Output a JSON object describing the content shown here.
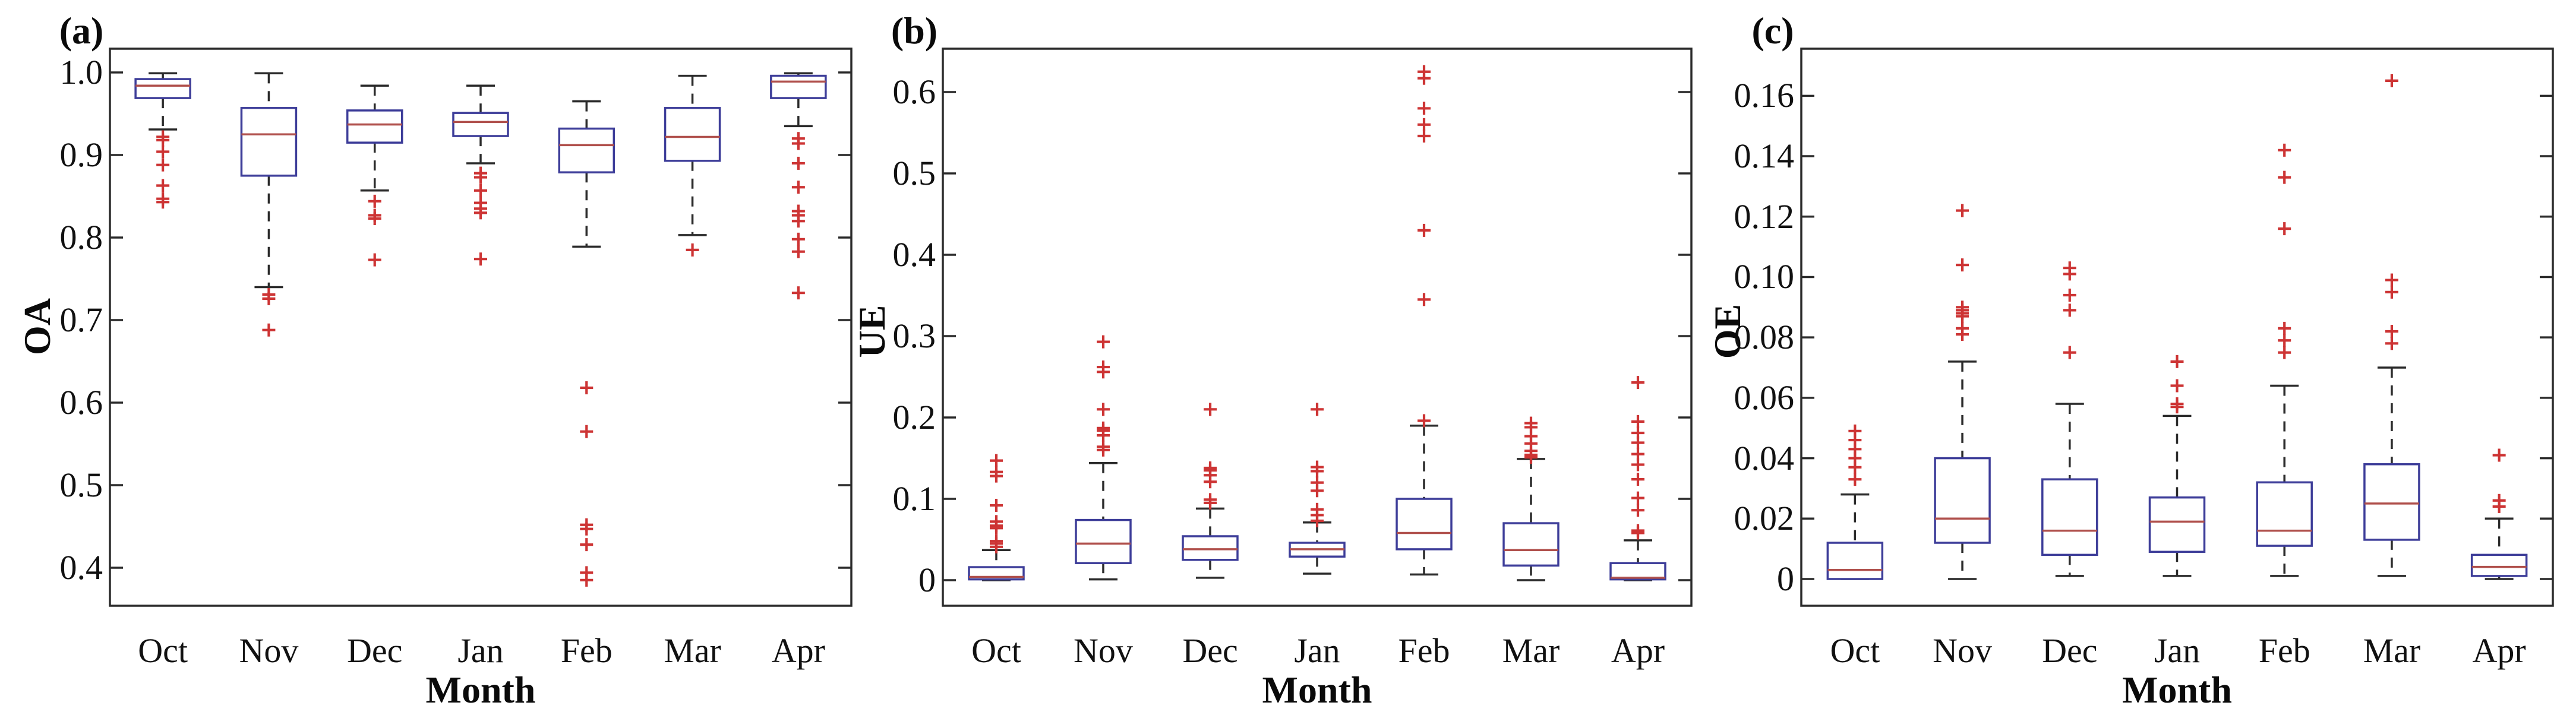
{
  "figure": {
    "background": "#ffffff",
    "box_color": "#3d3d99",
    "median_color": "#b0504c",
    "outlier_color": "#cd3434",
    "axis_color": "#2b2b2b",
    "text_color": "#111111"
  },
  "chart_data": [
    {
      "type": "box",
      "panel_label": "(a)",
      "ylabel": "OA",
      "xlabel": "Month",
      "categories": [
        "Oct",
        "Nov",
        "Dec",
        "Jan",
        "Feb",
        "Mar",
        "Apr"
      ],
      "ylim": [
        0.354,
        1.0288
      ],
      "ytick_values": [
        0.4,
        0.5,
        0.6,
        0.7,
        0.8,
        0.9,
        1.0
      ],
      "ytick_labels": [
        "0.4",
        "0.5",
        "0.6",
        "0.7",
        "0.8",
        "0.9",
        "1.0"
      ],
      "grid": false,
      "series": [
        {
          "label": "Oct",
          "whislo": 0.931,
          "q1": 0.969,
          "med": 0.984,
          "q3": 0.992,
          "whishi": 0.999,
          "fliers": [
            0.922,
            0.918,
            0.904,
            0.888,
            0.863,
            0.847,
            0.843
          ]
        },
        {
          "label": "Nov",
          "whislo": 0.74,
          "q1": 0.875,
          "med": 0.925,
          "q3": 0.957,
          "whishi": 0.999,
          "fliers": [
            0.731,
            0.726,
            0.688
          ]
        },
        {
          "label": "Dec",
          "whislo": 0.857,
          "q1": 0.915,
          "med": 0.937,
          "q3": 0.954,
          "whishi": 0.984,
          "fliers": [
            0.844,
            0.827,
            0.823,
            0.773
          ]
        },
        {
          "label": "Jan",
          "whislo": 0.89,
          "q1": 0.923,
          "med": 0.94,
          "q3": 0.951,
          "whishi": 0.984,
          "fliers": [
            0.878,
            0.873,
            0.857,
            0.842,
            0.835,
            0.83,
            0.774
          ]
        },
        {
          "label": "Feb",
          "whislo": 0.789,
          "q1": 0.879,
          "med": 0.912,
          "q3": 0.932,
          "whishi": 0.965,
          "fliers": [
            0.618,
            0.565,
            0.452,
            0.447,
            0.428,
            0.394,
            0.385
          ]
        },
        {
          "label": "Mar",
          "whislo": 0.803,
          "q1": 0.893,
          "med": 0.922,
          "q3": 0.957,
          "whishi": 0.996,
          "fliers": [
            0.785
          ]
        },
        {
          "label": "Apr",
          "whislo": 0.935,
          "q1": 0.969,
          "med": 0.989,
          "q3": 0.996,
          "whishi": 0.999,
          "fliers": [
            0.92,
            0.914,
            0.89,
            0.861,
            0.832,
            0.827,
            0.82,
            0.798,
            0.783,
            0.733
          ]
        }
      ]
    },
    {
      "type": "box",
      "panel_label": "(b)",
      "ylabel": "UE",
      "xlabel": "Month",
      "categories": [
        "Oct",
        "Nov",
        "Dec",
        "Jan",
        "Feb",
        "Mar",
        "Apr"
      ],
      "ylim": [
        -0.0314,
        0.6533
      ],
      "ytick_values": [
        0,
        0.1,
        0.2,
        0.3,
        0.4,
        0.5,
        0.6
      ],
      "ytick_labels": [
        "0",
        "0.1",
        "0.2",
        "0.3",
        "0.4",
        "0.5",
        "0.6"
      ],
      "grid": false,
      "series": [
        {
          "label": "Oct",
          "whislo": 0.0,
          "q1": 0.001,
          "med": 0.004,
          "q3": 0.016,
          "whishi": 0.037,
          "fliers": [
            0.041,
            0.045,
            0.048,
            0.064,
            0.067,
            0.072,
            0.092,
            0.128,
            0.133,
            0.147
          ]
        },
        {
          "label": "Nov",
          "whislo": 0.001,
          "q1": 0.021,
          "med": 0.045,
          "q3": 0.074,
          "whishi": 0.144,
          "fliers": [
            0.16,
            0.164,
            0.178,
            0.184,
            0.187,
            0.21,
            0.256,
            0.262,
            0.293
          ]
        },
        {
          "label": "Dec",
          "whislo": 0.003,
          "q1": 0.025,
          "med": 0.038,
          "q3": 0.054,
          "whishi": 0.088,
          "fliers": [
            0.095,
            0.099,
            0.121,
            0.129,
            0.135,
            0.138,
            0.21
          ]
        },
        {
          "label": "Jan",
          "whislo": 0.008,
          "q1": 0.029,
          "med": 0.038,
          "q3": 0.046,
          "whishi": 0.071,
          "fliers": [
            0.073,
            0.08,
            0.087,
            0.11,
            0.12,
            0.134,
            0.139,
            0.21
          ]
        },
        {
          "label": "Feb",
          "whislo": 0.007,
          "q1": 0.038,
          "med": 0.058,
          "q3": 0.1,
          "whishi": 0.19,
          "fliers": [
            0.196,
            0.345,
            0.43,
            0.546,
            0.56,
            0.58,
            0.617,
            0.625
          ]
        },
        {
          "label": "Mar",
          "whislo": 0.0,
          "q1": 0.018,
          "med": 0.037,
          "q3": 0.07,
          "whishi": 0.149,
          "fliers": [
            0.151,
            0.154,
            0.159,
            0.168,
            0.177,
            0.188,
            0.193
          ]
        },
        {
          "label": "Apr",
          "whislo": 0.0,
          "q1": 0.001,
          "med": 0.003,
          "q3": 0.021,
          "whishi": 0.049,
          "fliers": [
            0.058,
            0.061,
            0.086,
            0.101,
            0.124,
            0.142,
            0.155,
            0.169,
            0.181,
            0.195,
            0.243
          ]
        }
      ]
    },
    {
      "type": "box",
      "panel_label": "(c)",
      "ylabel": "OE",
      "xlabel": "Month",
      "categories": [
        "Oct",
        "Nov",
        "Dec",
        "Jan",
        "Feb",
        "Mar",
        "Apr"
      ],
      "ylim": [
        -0.00885,
        0.1756
      ],
      "ytick_values": [
        0,
        0.02,
        0.04,
        0.06,
        0.08,
        0.1,
        0.12,
        0.14,
        0.16
      ],
      "ytick_labels": [
        "0",
        "0.02",
        "0.04",
        "0.06",
        "0.08",
        "0.10",
        "0.12",
        "0.14",
        "0.16"
      ],
      "grid": false,
      "series": [
        {
          "label": "Oct",
          "whislo": 0.0,
          "q1": 0.0,
          "med": 0.003,
          "q3": 0.012,
          "whishi": 0.028,
          "fliers": [
            0.033,
            0.037,
            0.04,
            0.043,
            0.046,
            0.049
          ]
        },
        {
          "label": "Nov",
          "whislo": 0.0,
          "q1": 0.012,
          "med": 0.02,
          "q3": 0.04,
          "whishi": 0.072,
          "fliers": [
            0.081,
            0.083,
            0.087,
            0.088,
            0.089,
            0.09,
            0.104,
            0.122
          ]
        },
        {
          "label": "Dec",
          "whislo": 0.001,
          "q1": 0.008,
          "med": 0.016,
          "q3": 0.033,
          "whishi": 0.058,
          "fliers": [
            0.075,
            0.089,
            0.094,
            0.101,
            0.103
          ]
        },
        {
          "label": "Jan",
          "whislo": 0.001,
          "q1": 0.009,
          "med": 0.019,
          "q3": 0.027,
          "whishi": 0.054,
          "fliers": [
            0.057,
            0.058,
            0.064,
            0.072
          ]
        },
        {
          "label": "Feb",
          "whislo": 0.001,
          "q1": 0.011,
          "med": 0.016,
          "q3": 0.032,
          "whishi": 0.064,
          "fliers": [
            0.075,
            0.079,
            0.083,
            0.116,
            0.133,
            0.142
          ]
        },
        {
          "label": "Mar",
          "whislo": 0.001,
          "q1": 0.013,
          "med": 0.025,
          "q3": 0.038,
          "whishi": 0.07,
          "fliers": [
            0.078,
            0.082,
            0.095,
            0.099,
            0.165
          ]
        },
        {
          "label": "Apr",
          "whislo": 0.0,
          "q1": 0.001,
          "med": 0.004,
          "q3": 0.008,
          "whishi": 0.02,
          "fliers": [
            0.024,
            0.026,
            0.041
          ]
        }
      ]
    }
  ]
}
